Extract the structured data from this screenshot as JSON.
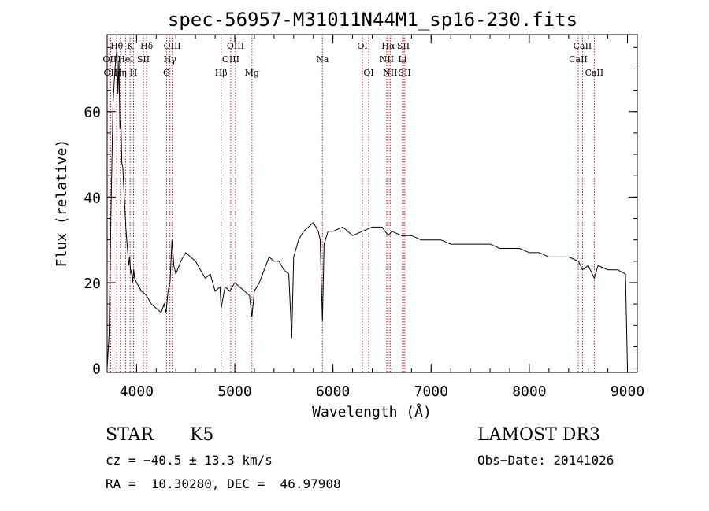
{
  "chart_data": {
    "type": "line",
    "title": "spec-56957-M31011N44M1_sp16-230.fits",
    "xlabel": "Wavelength (Å)",
    "ylabel": "Flux (relative)",
    "xlim": [
      3700,
      9100
    ],
    "ylim": [
      -1,
      78
    ],
    "xticks": [
      4000,
      5000,
      6000,
      7000,
      8000,
      9000
    ],
    "yticks": [
      0,
      20,
      40,
      60
    ],
    "x_minor_step": 200,
    "y_minor_step": 5,
    "grid": false,
    "line_color": "#000000",
    "marker_color": "#b22222",
    "series": [
      {
        "x": [
          3700,
          3720,
          3740,
          3760,
          3780,
          3800,
          3810,
          3820,
          3830,
          3840,
          3850,
          3860,
          3870,
          3880,
          3890,
          3900,
          3910,
          3920,
          3930,
          3940,
          3950,
          3960,
          3970,
          3980,
          4000,
          4050,
          4100,
          4150,
          4200,
          4250,
          4280,
          4300,
          4320,
          4340,
          4360,
          4380,
          4400,
          4450,
          4500,
          4550,
          4600,
          4650,
          4700,
          4750,
          4800,
          4850,
          4861,
          4900,
          4950,
          5000,
          5050,
          5100,
          5150,
          5175,
          5200,
          5250,
          5300,
          5350,
          5400,
          5450,
          5500,
          5550,
          5580,
          5600,
          5650,
          5700,
          5750,
          5800,
          5850,
          5870,
          5893,
          5910,
          5950,
          6000,
          6100,
          6200,
          6300,
          6400,
          6500,
          6563,
          6600,
          6700,
          6800,
          6900,
          7000,
          7100,
          7200,
          7300,
          7400,
          7500,
          7600,
          7700,
          7800,
          7900,
          8000,
          8100,
          8200,
          8300,
          8400,
          8500,
          8542,
          8600,
          8662,
          8700,
          8800,
          8900,
          8980,
          9000
        ],
        "y": [
          0,
          8,
          38,
          62,
          70,
          75,
          64,
          72,
          56,
          58,
          48,
          47,
          42,
          38,
          33,
          30,
          27,
          24,
          26,
          22,
          23,
          20,
          23,
          21,
          20,
          18,
          17,
          15,
          14,
          13,
          15,
          13,
          18,
          20,
          30,
          24,
          22,
          25,
          27,
          26,
          25,
          23,
          21,
          22,
          18,
          19,
          14,
          19,
          18,
          20,
          19,
          18,
          17,
          12,
          18,
          20,
          23,
          26,
          25,
          25,
          23,
          22,
          7,
          26,
          30,
          32,
          33,
          34,
          32,
          30,
          11,
          29,
          32,
          32,
          33,
          31,
          32,
          33,
          33,
          31,
          32,
          31,
          31,
          30,
          30,
          30,
          29,
          29,
          29,
          29,
          29,
          28,
          28,
          28,
          27,
          27,
          26,
          26,
          26,
          25,
          23,
          24,
          21,
          24,
          23,
          23,
          22,
          0
        ]
      }
    ],
    "lines": [
      {
        "label": "Hθ",
        "x": 3798,
        "row": 1
      },
      {
        "label": "OII",
        "x": 3727,
        "row": 2
      },
      {
        "label": "OII",
        "x": 3735,
        "row": 3
      },
      {
        "label": "K",
        "x": 3934,
        "row": 1
      },
      {
        "label": "HeI",
        "x": 3889,
        "row": 2
      },
      {
        "label": "Hη",
        "x": 3835,
        "row": 3
      },
      {
        "label": "Hδ",
        "x": 4102,
        "row": 1
      },
      {
        "label": "SII",
        "x": 4069,
        "row": 2
      },
      {
        "label": "H",
        "x": 3969,
        "row": 3
      },
      {
        "label": "OIII",
        "x": 4363,
        "row": 1
      },
      {
        "label": "Hγ",
        "x": 4340,
        "row": 2
      },
      {
        "label": "G",
        "x": 4305,
        "row": 3
      },
      {
        "label": "OIII",
        "x": 5007,
        "row": 1
      },
      {
        "label": "OIII",
        "x": 4959,
        "row": 2
      },
      {
        "label": "Hβ",
        "x": 4861,
        "row": 3
      },
      {
        "label": "Mg",
        "x": 5175,
        "row": 3
      },
      {
        "label": "Na",
        "x": 5893,
        "row": 2
      },
      {
        "label": "OI",
        "x": 6300,
        "row": 1
      },
      {
        "label": "OI",
        "x": 6364,
        "row": 3
      },
      {
        "label": "Hα",
        "x": 6563,
        "row": 1
      },
      {
        "label": "NII",
        "x": 6548,
        "row": 2
      },
      {
        "label": "NII",
        "x": 6583,
        "row": 3
      },
      {
        "label": "SII",
        "x": 6717,
        "row": 1
      },
      {
        "label": "Li",
        "x": 6708,
        "row": 2
      },
      {
        "label": "SII",
        "x": 6731,
        "row": 3
      },
      {
        "label": "CaII",
        "x": 8542,
        "row": 1
      },
      {
        "label": "CaII",
        "x": 8498,
        "row": 2
      },
      {
        "label": "CaII",
        "x": 8662,
        "row": 3
      }
    ]
  },
  "footer": {
    "object_class": "STAR",
    "subclass": "K5",
    "survey": "LAMOST DR3",
    "cz": "cz = −40.5 ± 13.3 km/s",
    "obs_date": "Obs−Date: 20141026",
    "coords": "RA =  10.30280, DEC =  46.97908"
  }
}
